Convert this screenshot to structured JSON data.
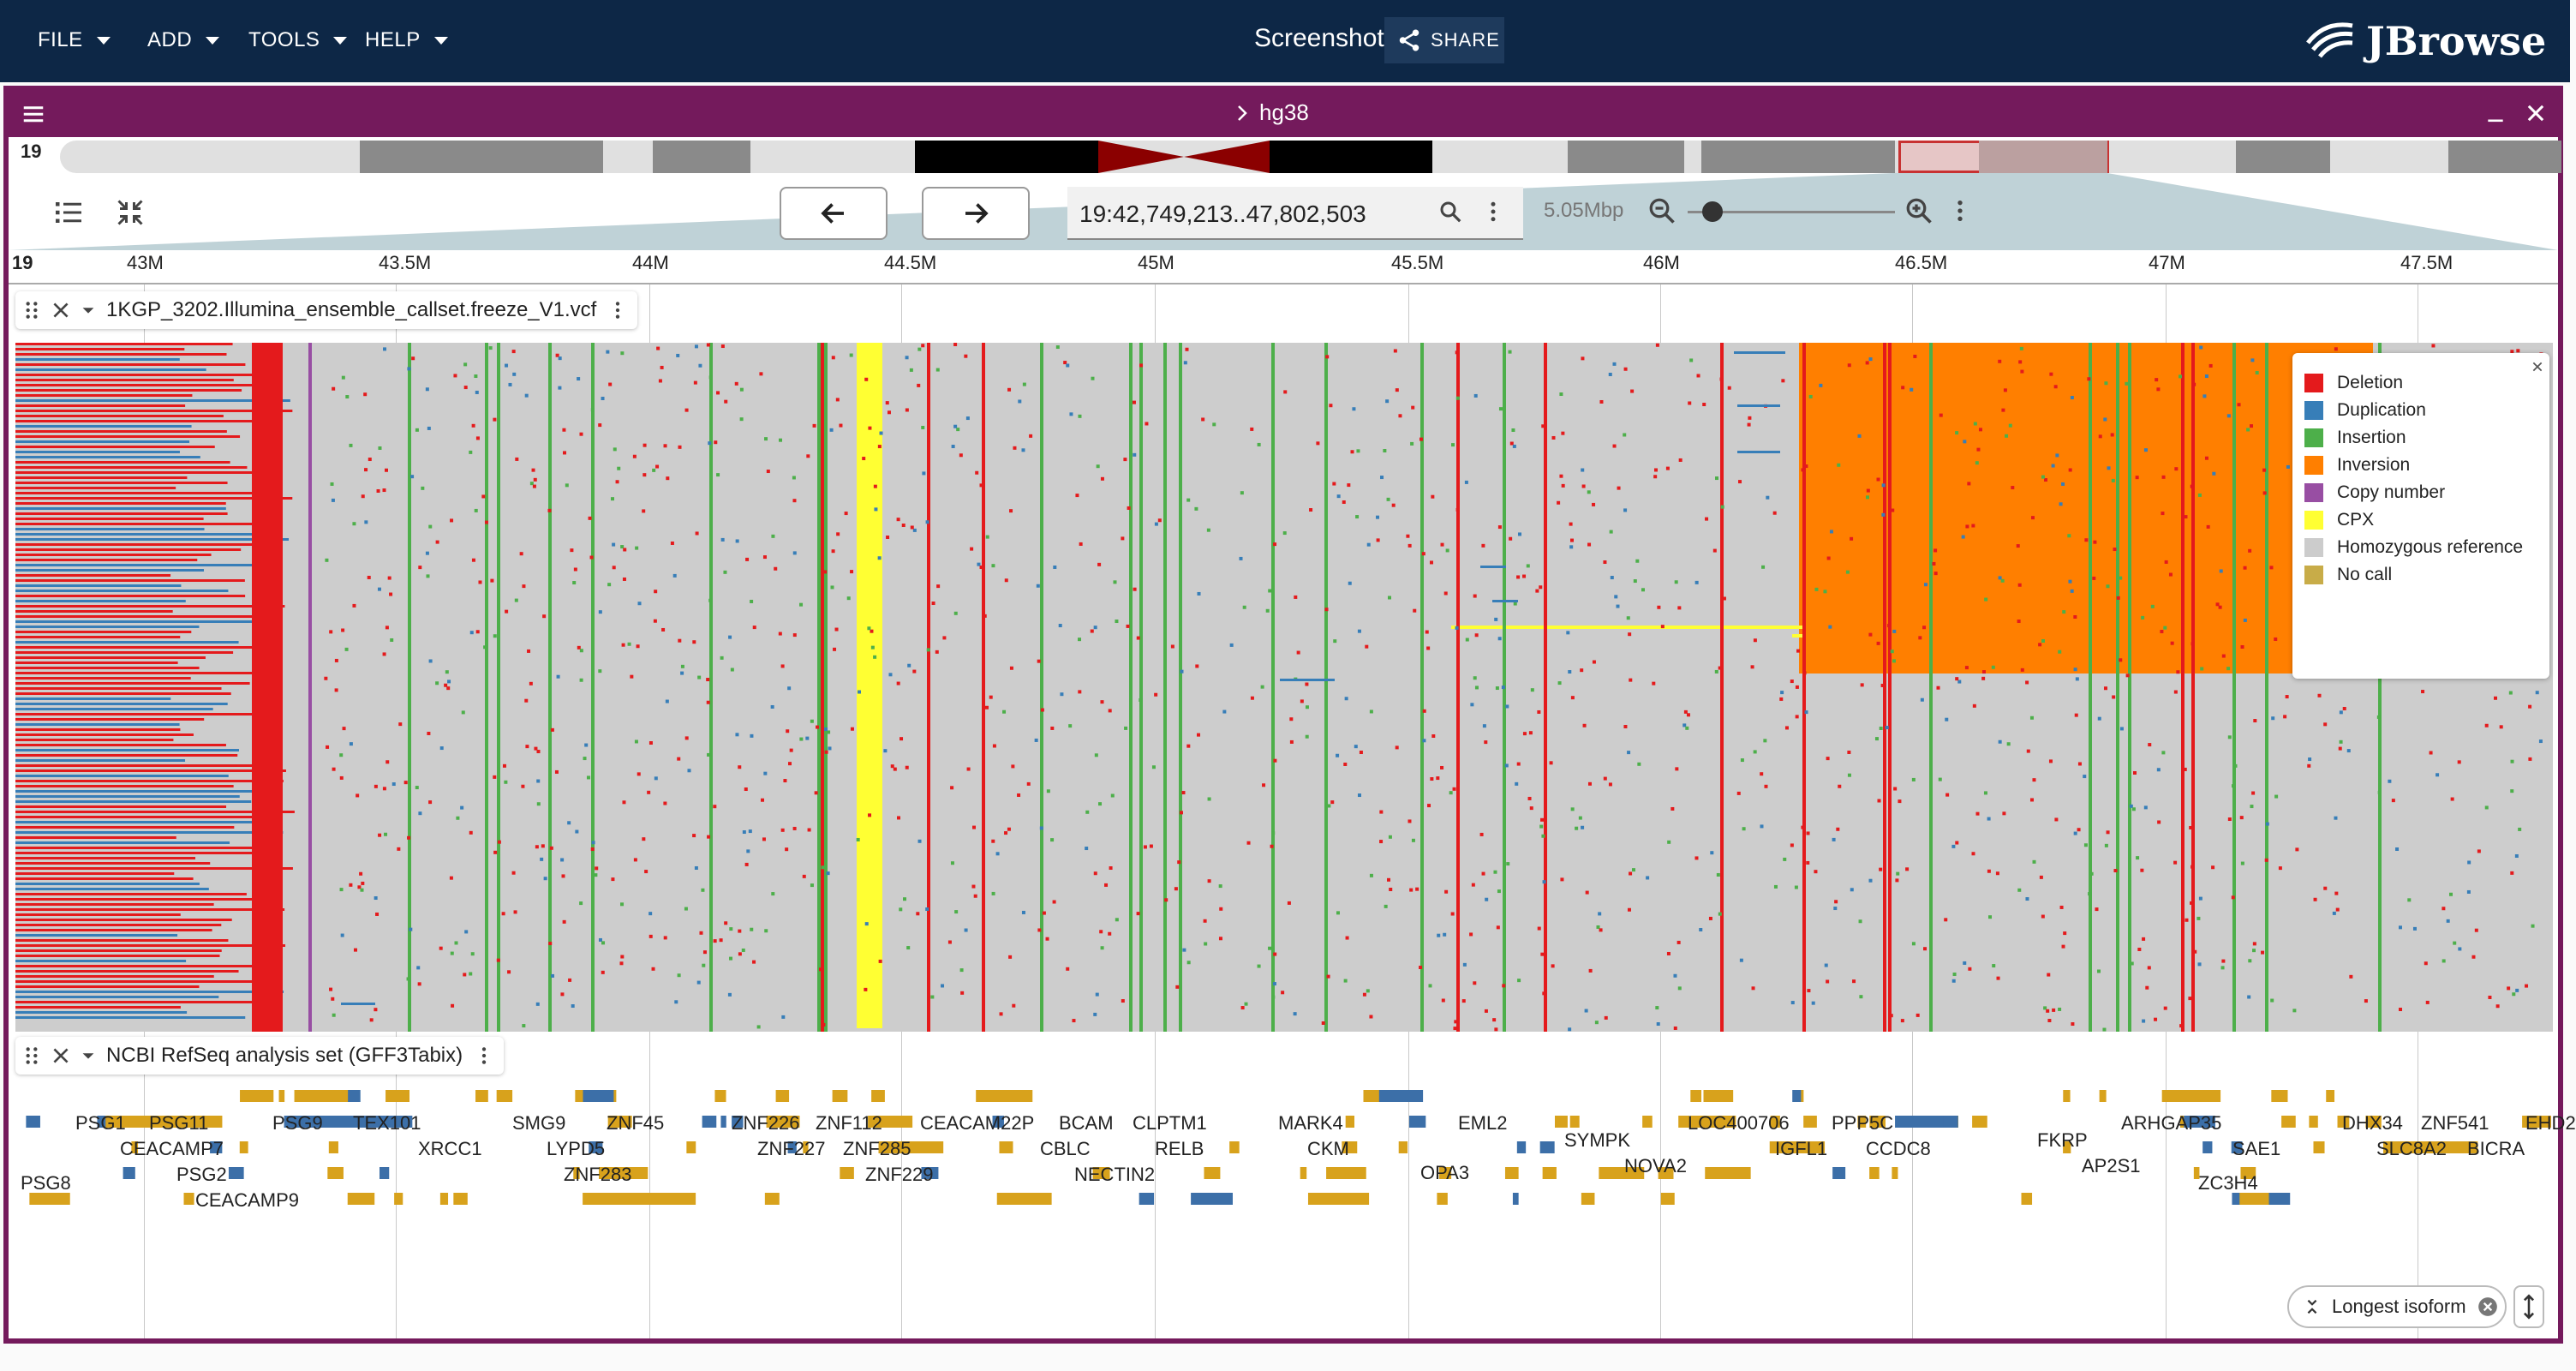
{
  "menu": {
    "file": "FILE",
    "add": "ADD",
    "tools": "TOOLS",
    "help": "HELP"
  },
  "header": {
    "screenshot": "Screenshot",
    "share": "SHARE",
    "logo": "JBrowse"
  },
  "view": {
    "assembly": "hg38",
    "chromosome": "19",
    "location": "19:42,749,213..47,802,503",
    "bp_per_view": "5.05Mbp",
    "zoom_level": 0.12
  },
  "scale": {
    "chrom": "19",
    "ticks": [
      "43M",
      "43.5M",
      "44M",
      "44.5M",
      "45M",
      "45.5M",
      "46M",
      "46.5M",
      "47M",
      "47.5M"
    ]
  },
  "tracks": {
    "variants": "1KGP_3202.Illumina_ensemble_callset.freeze_V1.vcf",
    "genes": "NCBI RefSeq analysis set (GFF3Tabix)"
  },
  "legend": {
    "items": [
      {
        "label": "Deletion",
        "color": "#e41a1c"
      },
      {
        "label": "Duplication",
        "color": "#377eb8"
      },
      {
        "label": "Insertion",
        "color": "#4daf4a"
      },
      {
        "label": "Inversion",
        "color": "#ff7f00"
      },
      {
        "label": "Copy number",
        "color": "#984ea3"
      },
      {
        "label": "CPX",
        "color": "#ffff33"
      },
      {
        "label": "Homozygous reference",
        "color": "#cccccc"
      },
      {
        "label": "No call",
        "color": "#c8ac48"
      }
    ]
  },
  "genes": [
    "PSG1",
    "PSG11",
    "PSG9",
    "TEX101",
    "SMG9",
    "ZNF45",
    "ZNF226",
    "ZNF112",
    "CEACAM22P",
    "BCAM",
    "CLPTM1",
    "MARK4",
    "EML2",
    "LOC400706",
    "PPP5C",
    "ARHGAP35",
    "DHX34",
    "ZNF541",
    "EHD2",
    "CEACAMP7",
    "XRCC1",
    "LYPD5",
    "ZNF227",
    "ZNF285",
    "CBLC",
    "RELB",
    "CKM",
    "OPA3",
    "SYMPK",
    "IGFL1",
    "CCDC8",
    "FKRP",
    "SAE1",
    "SLC8A2",
    "BICRA",
    "PSG2",
    "ZNF283",
    "ZNF229",
    "NECTIN2",
    "NOVA2",
    "AP2S1",
    "PSG8",
    "ZC3H4",
    "CEACAMP9"
  ],
  "isoform_button": "Longest isoform"
}
